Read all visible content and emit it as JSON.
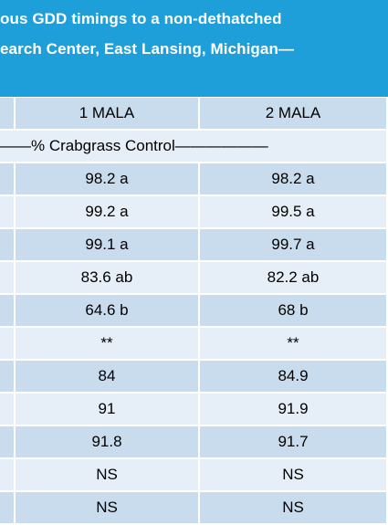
{
  "header": {
    "line1": "ous GDD timings to a non-dethatched",
    "line2": "earch Center, East Lansing, Michigan—"
  },
  "columns": [
    "1 MALA",
    "2 MALA"
  ],
  "subheader": "——% Crabgrass Control——————",
  "rows": [
    [
      "98.2 a",
      "98.2 a"
    ],
    [
      "99.2 a",
      "99.5 a"
    ],
    [
      "99.1 a",
      "99.7 a"
    ],
    [
      "83.6 ab",
      "82.2 ab"
    ],
    [
      "64.6 b",
      "68 b"
    ],
    [
      "**",
      "**"
    ],
    [
      "84",
      "84.9"
    ],
    [
      "91",
      "91.9"
    ],
    [
      "91.8",
      "91.7"
    ],
    [
      "NS",
      "NS"
    ],
    [
      "NS",
      "NS"
    ]
  ],
  "colors": {
    "header_bg": "#1e9fd9",
    "row_dark": "#c9dcee",
    "row_light": "#e6eef7"
  }
}
